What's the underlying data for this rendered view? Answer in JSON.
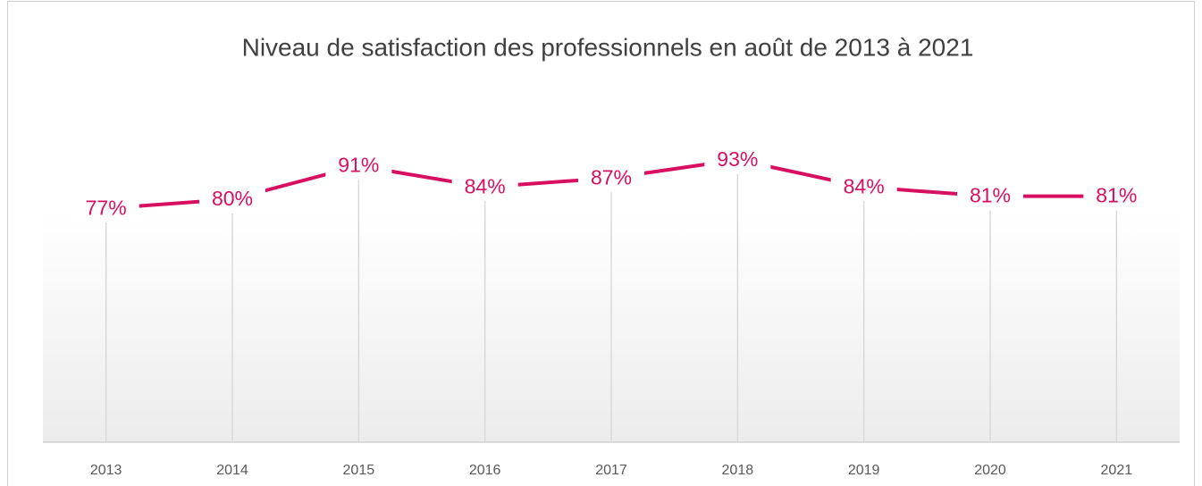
{
  "chart_data": {
    "type": "line",
    "title": "Niveau de satisfaction des professionnels en août de 2013 à 2021",
    "categories": [
      "2013",
      "2014",
      "2015",
      "2016",
      "2017",
      "2018",
      "2019",
      "2020",
      "2021"
    ],
    "values": [
      77,
      80,
      91,
      84,
      87,
      93,
      84,
      81,
      81
    ],
    "value_labels": [
      "77%",
      "80%",
      "91%",
      "84%",
      "87%",
      "93%",
      "84%",
      "81%",
      "81%"
    ],
    "color": "#d80f61",
    "ylim": [
      0,
      100
    ],
    "drop_lines": true
  }
}
